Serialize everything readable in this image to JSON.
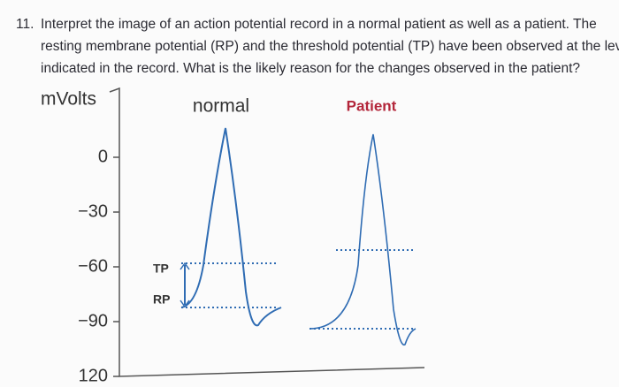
{
  "question": {
    "number": "11.",
    "lines": [
      "Interpret the image of an action potential record in a normal patient as well as a patient. The",
      "resting membrane potential (RP) and the threshold potential (TP) have been observed at the levels",
      "indicated in the record. What is the likely reason for the changes observed in the patient?"
    ]
  },
  "figure": {
    "y_axis_label": "mVolts",
    "yticks": [
      0,
      {
        "value": -30,
        "label": "−30"
      },
      {
        "value": -60,
        "label": "−60"
      },
      {
        "value": -90,
        "label": "−90"
      },
      120
    ],
    "normal_label": "normal",
    "patient_label": "Patient",
    "tp_label": "TP",
    "rp_label": "RP"
  }
}
